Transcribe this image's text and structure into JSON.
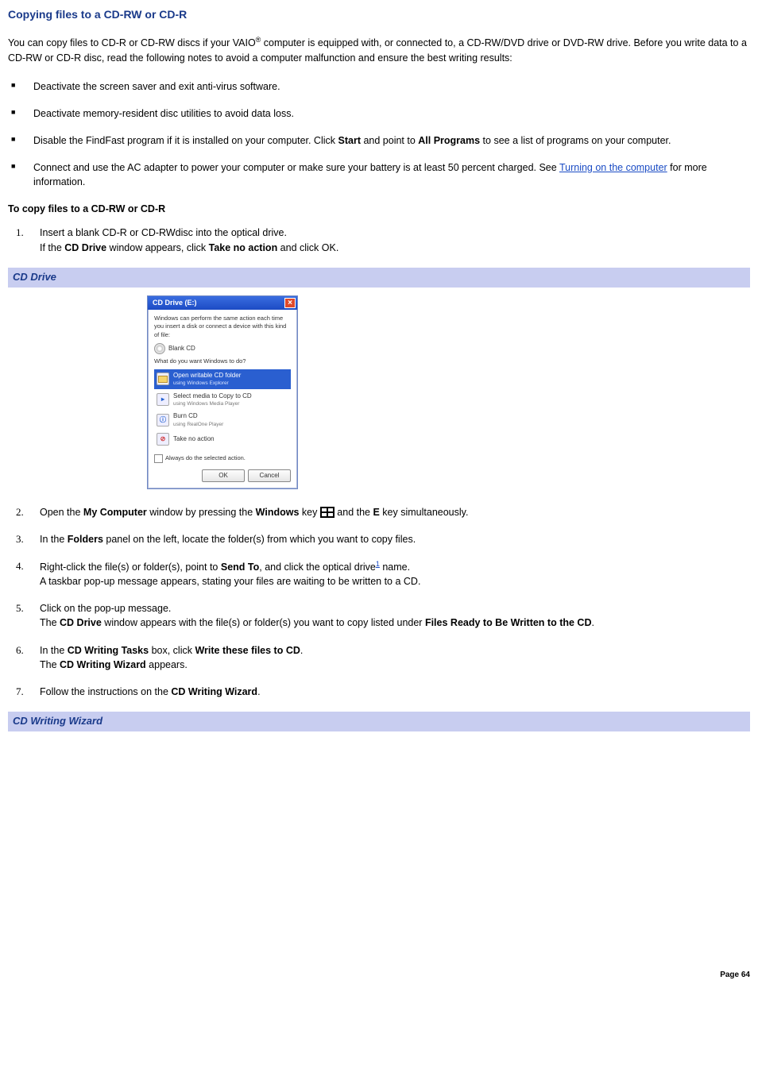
{
  "title": "Copying files to a CD-RW or CD-R",
  "intro": {
    "pre": "You can copy files to CD-R or CD-RW discs if your VAIO",
    "reg": "®",
    "post": " computer is equipped with, or connected to, a CD-RW/DVD drive or DVD-RW drive. Before you write data to a CD-RW or CD-R disc, read the following notes to avoid a computer malfunction and ensure the best writing results:"
  },
  "bullets": {
    "b1": "Deactivate the screen saver and exit anti-virus software.",
    "b2": "Deactivate memory-resident disc utilities to avoid data loss.",
    "b3": {
      "t1": "Disable the FindFast program if it is installed on your computer. Click ",
      "start": "Start",
      "t2": " and point to ",
      "allprog": "All Programs",
      "t3": " to see a list of programs on your computer."
    },
    "b4": {
      "t1": "Connect and use the AC adapter to power your computer or make sure your battery is at least 50 percent charged. See ",
      "link": "Turning on the computer",
      "t2": " for more information."
    }
  },
  "proc_heading": "To copy files to a CD-RW or CD-R",
  "steps": {
    "s1": {
      "line1": "Insert a blank CD-R or CD-RWdisc into the optical drive.",
      "line2a": "If the ",
      "cd_drive": "CD Drive",
      "line2b": " window appears, click ",
      "takeno": "Take no action",
      "line2c": " and click OK."
    },
    "s2": {
      "a": "Open the ",
      "mycomp": "My Computer",
      "b": " window by pressing the ",
      "winkey": "Windows",
      "c": " key ",
      "d": " and the ",
      "ekey": "E",
      "e": " key simultaneously."
    },
    "s3": {
      "a": "In the ",
      "folders": "Folders",
      "b": " panel on the left, locate the folder(s) from which you want to copy files."
    },
    "s4": {
      "a": "Right-click the file(s) or folder(s), point to ",
      "sendto": "Send To",
      "b": ", and click the optical drive",
      "fn": "1",
      "c": " name.",
      "sub": "A taskbar pop-up message appears, stating your files are waiting to be written to a CD."
    },
    "s5": {
      "a": "Click on the pop-up message.",
      "b1": "The ",
      "cd_drive": "CD Drive",
      "b2": " window appears with the file(s) or folder(s) you want to copy listed under ",
      "frt": "Files Ready to Be Written to the CD",
      "b3": "."
    },
    "s6": {
      "a": "In the ",
      "tasks": "CD Writing Tasks",
      "b": " box, click ",
      "write": "Write these files to CD",
      "c": ".",
      "sub1": "The ",
      "wiz": "CD Writing Wizard",
      "sub2": " appears."
    },
    "s7": {
      "a": "Follow the instructions on the ",
      "wiz": "CD Writing Wizard",
      "b": "."
    }
  },
  "band1": "CD Drive",
  "band2": "CD Writing Wizard",
  "dialog": {
    "title": "CD Drive (E:)",
    "msg": "Windows can perform the same action each time you insert a disk or connect a device with this kind of file:",
    "blank": "Blank CD",
    "prompt": "What do you want Windows to do?",
    "opt1": "Open writable CD folder",
    "opt1sub": "using Windows Explorer",
    "opt2": "Select media to Copy to CD",
    "opt2sub": "using Windows Media Player",
    "opt3": "Burn CD",
    "opt3sub": "using RealOne Player",
    "opt4": "Take no action",
    "always": "Always do the selected action.",
    "ok": "OK",
    "cancel": "Cancel"
  },
  "footer": "Page 64"
}
